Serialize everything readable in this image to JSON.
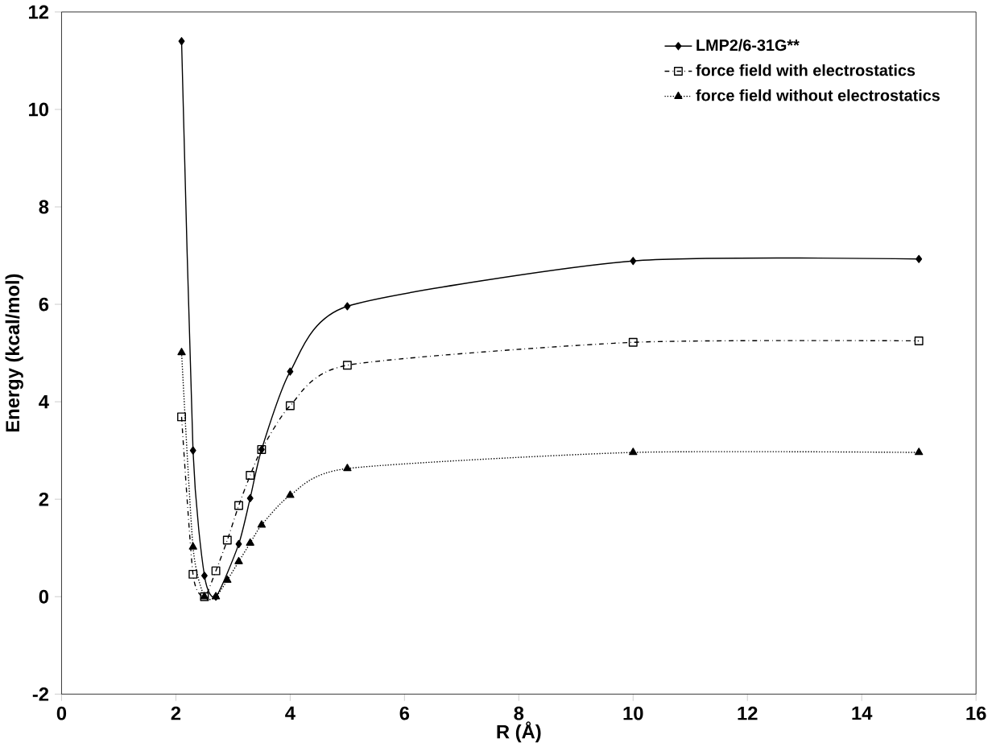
{
  "chart_data": {
    "type": "line",
    "xlabel": "R (Å)",
    "ylabel": "Energy (kcal/mol)",
    "xlim": [
      0,
      16
    ],
    "xticks": [
      0,
      2,
      4,
      6,
      8,
      10,
      12,
      14,
      16
    ],
    "ylim": [
      -2,
      12
    ],
    "yticks": [
      -2,
      0,
      2,
      4,
      6,
      8,
      10,
      12
    ],
    "grid": false,
    "legend": "top right",
    "series": [
      {
        "name": "LMP2/6-31G**",
        "color": "#000000",
        "marker": "diamond",
        "line_style": "solid",
        "x": [
          2.1,
          2.3,
          2.5,
          2.7,
          3.1,
          3.3,
          3.5,
          4.0,
          5.0,
          10,
          15
        ],
        "values": [
          11.4,
          3.0,
          0.43,
          0.0,
          1.08,
          2.02,
          3.02,
          4.62,
          5.96,
          6.89,
          6.93
        ]
      },
      {
        "name": "force field with electrostatics",
        "color": "#000000",
        "marker": "square",
        "line_style": "dashdotted",
        "x": [
          2.1,
          2.3,
          2.5,
          2.7,
          2.9,
          3.1,
          3.3,
          3.5,
          4.0,
          5.0,
          10,
          15
        ],
        "values": [
          3.69,
          0.46,
          0.0,
          0.53,
          1.16,
          1.87,
          2.49,
          3.02,
          3.92,
          4.75,
          5.22,
          5.25
        ]
      },
      {
        "name": "force field without electrostatics",
        "color": "#000000",
        "marker": "triangle",
        "line_style": "dotted",
        "x": [
          2.1,
          2.3,
          2.5,
          2.7,
          2.9,
          3.1,
          3.3,
          3.5,
          4.0,
          5.0,
          10,
          15
        ],
        "values": [
          5.01,
          1.02,
          0.0,
          0.0,
          0.34,
          0.72,
          1.1,
          1.47,
          2.08,
          2.63,
          2.96,
          2.96
        ]
      }
    ]
  }
}
